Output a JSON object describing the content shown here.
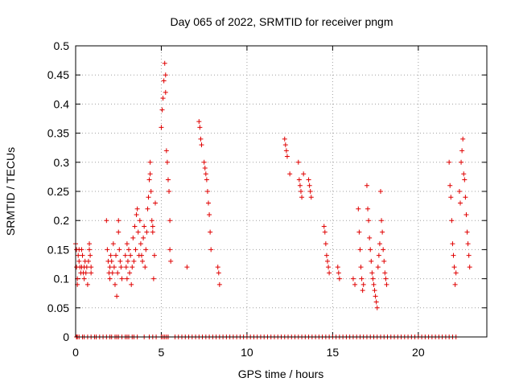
{
  "chart_data": {
    "type": "scatter",
    "title": "Day 065 of 2022, SRMTID for receiver pngm",
    "xlabel": "GPS time / hours",
    "ylabel": "SRMTID / TECUs",
    "xlim": [
      0,
      24
    ],
    "ylim": [
      0,
      0.5
    ],
    "xticks": [
      0,
      5,
      10,
      15,
      20
    ],
    "yticks": [
      0,
      0.05,
      0.1,
      0.15,
      0.2,
      0.25,
      0.3,
      0.35,
      0.4,
      0.45,
      0.5
    ],
    "grid": true,
    "marker": "plus",
    "marker_color": "#e00000",
    "series": [
      {
        "name": "SRMTID",
        "points": [
          [
            0.0,
            0.16
          ],
          [
            0.05,
            0.15
          ],
          [
            0.05,
            0.12
          ],
          [
            0.1,
            0.09
          ],
          [
            0.1,
            0.1
          ],
          [
            0.15,
            0.14
          ],
          [
            0.2,
            0.13
          ],
          [
            0.2,
            0.15
          ],
          [
            0.25,
            0.12
          ],
          [
            0.3,
            0.11
          ],
          [
            0.35,
            0.12
          ],
          [
            0.35,
            0.15
          ],
          [
            0.4,
            0.14
          ],
          [
            0.45,
            0.11
          ],
          [
            0.5,
            0.1
          ],
          [
            0.5,
            0.12
          ],
          [
            0.55,
            0.13
          ],
          [
            0.6,
            0.11
          ],
          [
            0.65,
            0.12
          ],
          [
            0.7,
            0.09
          ],
          [
            0.75,
            0.13
          ],
          [
            0.8,
            0.15
          ],
          [
            0.8,
            0.16
          ],
          [
            0.85,
            0.14
          ],
          [
            0.9,
            0.12
          ],
          [
            0.9,
            0.11
          ],
          [
            1.8,
            0.2
          ],
          [
            1.85,
            0.15
          ],
          [
            1.9,
            0.13
          ],
          [
            1.95,
            0.11
          ],
          [
            2.0,
            0.1
          ],
          [
            2.0,
            0.12
          ],
          [
            2.05,
            0.14
          ],
          [
            2.1,
            0.13
          ],
          [
            2.15,
            0.11
          ],
          [
            2.2,
            0.16
          ],
          [
            2.25,
            0.12
          ],
          [
            2.3,
            0.09
          ],
          [
            2.35,
            0.14
          ],
          [
            2.4,
            0.07
          ],
          [
            2.45,
            0.11
          ],
          [
            2.5,
            0.18
          ],
          [
            2.5,
            0.2
          ],
          [
            2.55,
            0.15
          ],
          [
            2.6,
            0.13
          ],
          [
            2.65,
            0.12
          ],
          [
            2.7,
            0.1
          ],
          [
            2.9,
            0.14
          ],
          [
            2.95,
            0.12
          ],
          [
            3.0,
            0.16
          ],
          [
            3.0,
            0.1
          ],
          [
            3.05,
            0.13
          ],
          [
            3.1,
            0.15
          ],
          [
            3.15,
            0.11
          ],
          [
            3.2,
            0.14
          ],
          [
            3.25,
            0.09
          ],
          [
            3.3,
            0.12
          ],
          [
            3.35,
            0.17
          ],
          [
            3.4,
            0.13
          ],
          [
            3.45,
            0.19
          ],
          [
            3.5,
            0.15
          ],
          [
            3.55,
            0.21
          ],
          [
            3.6,
            0.22
          ],
          [
            3.65,
            0.18
          ],
          [
            3.7,
            0.14
          ],
          [
            3.75,
            0.2
          ],
          [
            3.8,
            0.16
          ],
          [
            3.85,
            0.14
          ],
          [
            3.9,
            0.13
          ],
          [
            3.95,
            0.17
          ],
          [
            4.0,
            0.19
          ],
          [
            4.05,
            0.12
          ],
          [
            4.1,
            0.15
          ],
          [
            4.15,
            0.18
          ],
          [
            4.2,
            0.22
          ],
          [
            4.25,
            0.24
          ],
          [
            4.3,
            0.27
          ],
          [
            4.35,
            0.28
          ],
          [
            4.35,
            0.3
          ],
          [
            4.4,
            0.25
          ],
          [
            4.45,
            0.2
          ],
          [
            4.5,
            0.19
          ],
          [
            4.5,
            0.18
          ],
          [
            4.55,
            0.1
          ],
          [
            4.6,
            0.14
          ],
          [
            4.65,
            0.23
          ],
          [
            5.0,
            0.36
          ],
          [
            5.05,
            0.39
          ],
          [
            5.1,
            0.41
          ],
          [
            5.15,
            0.44
          ],
          [
            5.2,
            0.47
          ],
          [
            5.25,
            0.45
          ],
          [
            5.25,
            0.42
          ],
          [
            5.3,
            0.32
          ],
          [
            5.35,
            0.3
          ],
          [
            5.4,
            0.27
          ],
          [
            5.45,
            0.25
          ],
          [
            5.5,
            0.2
          ],
          [
            5.5,
            0.15
          ],
          [
            5.55,
            0.13
          ],
          [
            6.5,
            0.12
          ],
          [
            7.2,
            0.37
          ],
          [
            7.25,
            0.36
          ],
          [
            7.3,
            0.34
          ],
          [
            7.35,
            0.33
          ],
          [
            7.5,
            0.3
          ],
          [
            7.55,
            0.29
          ],
          [
            7.6,
            0.28
          ],
          [
            7.65,
            0.27
          ],
          [
            7.7,
            0.25
          ],
          [
            7.75,
            0.23
          ],
          [
            7.8,
            0.21
          ],
          [
            7.85,
            0.18
          ],
          [
            7.9,
            0.15
          ],
          [
            8.3,
            0.12
          ],
          [
            8.35,
            0.11
          ],
          [
            8.4,
            0.09
          ],
          [
            12.2,
            0.34
          ],
          [
            12.25,
            0.33
          ],
          [
            12.3,
            0.32
          ],
          [
            12.35,
            0.31
          ],
          [
            12.5,
            0.28
          ],
          [
            13.0,
            0.3
          ],
          [
            13.05,
            0.27
          ],
          [
            13.1,
            0.26
          ],
          [
            13.15,
            0.25
          ],
          [
            13.2,
            0.24
          ],
          [
            13.3,
            0.28
          ],
          [
            13.6,
            0.27
          ],
          [
            13.65,
            0.26
          ],
          [
            13.7,
            0.25
          ],
          [
            13.75,
            0.24
          ],
          [
            14.5,
            0.19
          ],
          [
            14.55,
            0.18
          ],
          [
            14.6,
            0.16
          ],
          [
            14.65,
            0.14
          ],
          [
            14.7,
            0.13
          ],
          [
            14.75,
            0.12
          ],
          [
            14.8,
            0.11
          ],
          [
            15.3,
            0.12
          ],
          [
            15.35,
            0.11
          ],
          [
            15.4,
            0.1
          ],
          [
            16.2,
            0.1
          ],
          [
            16.3,
            0.09
          ],
          [
            16.5,
            0.22
          ],
          [
            16.55,
            0.18
          ],
          [
            16.6,
            0.15
          ],
          [
            16.65,
            0.12
          ],
          [
            16.7,
            0.1
          ],
          [
            16.75,
            0.08
          ],
          [
            16.8,
            0.09
          ],
          [
            17.0,
            0.26
          ],
          [
            17.05,
            0.22
          ],
          [
            17.1,
            0.2
          ],
          [
            17.15,
            0.17
          ],
          [
            17.2,
            0.15
          ],
          [
            17.25,
            0.13
          ],
          [
            17.3,
            0.11
          ],
          [
            17.35,
            0.1
          ],
          [
            17.4,
            0.09
          ],
          [
            17.45,
            0.08
          ],
          [
            17.5,
            0.07
          ],
          [
            17.55,
            0.06
          ],
          [
            17.6,
            0.05
          ],
          [
            17.65,
            0.12
          ],
          [
            17.7,
            0.14
          ],
          [
            17.75,
            0.16
          ],
          [
            17.8,
            0.25
          ],
          [
            17.85,
            0.2
          ],
          [
            17.9,
            0.18
          ],
          [
            17.95,
            0.15
          ],
          [
            18.0,
            0.13
          ],
          [
            18.05,
            0.11
          ],
          [
            18.1,
            0.1
          ],
          [
            18.15,
            0.09
          ],
          [
            21.8,
            0.3
          ],
          [
            21.85,
            0.26
          ],
          [
            21.9,
            0.24
          ],
          [
            21.95,
            0.2
          ],
          [
            22.0,
            0.16
          ],
          [
            22.05,
            0.14
          ],
          [
            22.1,
            0.12
          ],
          [
            22.15,
            0.09
          ],
          [
            22.2,
            0.11
          ],
          [
            22.4,
            0.25
          ],
          [
            22.45,
            0.23
          ],
          [
            22.5,
            0.3
          ],
          [
            22.55,
            0.32
          ],
          [
            22.6,
            0.34
          ],
          [
            22.65,
            0.28
          ],
          [
            22.7,
            0.27
          ],
          [
            22.75,
            0.24
          ],
          [
            22.8,
            0.21
          ],
          [
            22.85,
            0.18
          ],
          [
            22.9,
            0.16
          ],
          [
            22.95,
            0.14
          ],
          [
            23.0,
            0.12
          ]
        ],
        "zero_values_x": [
          0.05,
          0.1,
          0.2,
          0.4,
          0.5,
          0.7,
          0.9,
          1.1,
          1.2,
          1.4,
          1.6,
          1.8,
          2.0,
          2.1,
          2.3,
          2.4,
          2.5,
          2.7,
          2.9,
          3.0,
          3.1,
          3.3,
          3.4,
          3.6,
          4.0,
          4.3,
          4.5,
          4.7,
          5.0,
          5.1,
          5.2,
          5.3,
          5.4,
          5.8,
          6.0,
          6.2,
          6.4,
          6.6,
          6.8,
          7.0,
          7.2,
          7.4,
          7.6,
          7.8,
          8.0,
          8.2,
          8.4,
          8.6,
          8.8,
          9.0,
          9.2,
          9.4,
          9.6,
          9.8,
          10.0,
          10.2,
          10.4,
          10.6,
          10.8,
          11.0,
          11.2,
          11.4,
          11.6,
          11.8,
          12.0,
          12.2,
          12.4,
          12.6,
          12.8,
          13.0,
          13.2,
          13.4,
          13.6,
          13.8,
          14.0,
          14.2,
          14.4,
          14.6,
          14.8,
          15.0,
          15.2,
          15.4,
          15.6,
          15.8,
          16.0,
          16.2,
          16.4,
          16.6,
          16.8,
          17.0,
          17.2,
          17.4,
          17.6,
          17.8,
          18.0,
          18.2,
          18.4,
          18.6,
          18.8,
          19.0,
          19.2,
          19.4,
          19.6,
          19.8,
          20.0,
          20.2,
          20.4,
          20.6,
          20.8,
          21.0,
          21.2,
          21.4,
          21.6,
          21.8,
          22.0,
          22.2
        ]
      }
    ]
  }
}
